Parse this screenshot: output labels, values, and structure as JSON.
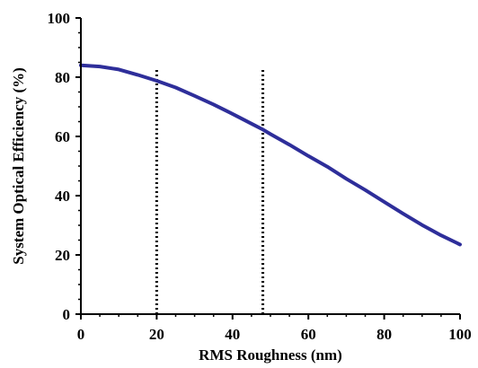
{
  "chart_data": {
    "type": "line",
    "title": "",
    "xlabel": "RMS Roughness (nm)",
    "ylabel": "System Optical Efficiency (%)",
    "xlim": [
      0,
      100
    ],
    "ylim": [
      0,
      100
    ],
    "x_ticks": [
      0,
      20,
      40,
      60,
      80,
      100
    ],
    "y_ticks": [
      0,
      20,
      40,
      60,
      80,
      100
    ],
    "grid": false,
    "series": [
      {
        "color": "#2e2e9a",
        "x": [
          0,
          5,
          10,
          15,
          20,
          25,
          30,
          35,
          40,
          45,
          48,
          50,
          55,
          60,
          65,
          70,
          75,
          80,
          85,
          90,
          95,
          100
        ],
        "y": [
          84,
          83.6,
          82.6,
          80.8,
          78.8,
          76.5,
          73.7,
          70.8,
          67.6,
          64.3,
          62.3,
          60.8,
          57.2,
          53.4,
          49.8,
          45.7,
          41.9,
          37.9,
          33.9,
          30.1,
          26.6,
          23.5
        ]
      }
    ],
    "reference_lines": [
      {
        "x": 20,
        "y_from": 0,
        "y_to": 83,
        "style": "dotted",
        "color": "#000000"
      },
      {
        "x": 48,
        "y_from": 0,
        "y_to": 83,
        "style": "dotted",
        "color": "#000000"
      }
    ]
  }
}
